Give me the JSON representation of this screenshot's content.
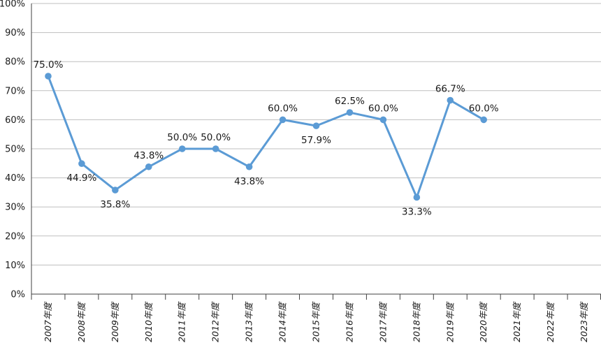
{
  "chart_data": {
    "type": "line",
    "title": "",
    "xlabel": "",
    "ylabel": "",
    "categories": [
      "2007年度",
      "2008年度",
      "2009年度",
      "2010年度",
      "2011年度",
      "2012年度",
      "2013年度",
      "2014年度",
      "2015年度",
      "2016年度",
      "2017年度",
      "2018年度",
      "2019年度",
      "2020年度",
      "2021年度",
      "2022年度",
      "2023年度"
    ],
    "series": [
      {
        "color": "#5b9bd5",
        "values": [
          75.0,
          44.9,
          35.8,
          43.8,
          50.0,
          50.0,
          43.8,
          60.0,
          57.9,
          62.5,
          60.0,
          33.3,
          66.7,
          60.0,
          null,
          null,
          null
        ],
        "labels": [
          "75.0%",
          "44.9%",
          "35.8%",
          "43.8%",
          "50.0%",
          "50.0%",
          "43.8%",
          "60.0%",
          "57.9%",
          "62.5%",
          "60.0%",
          "33.3%",
          "66.7%",
          "60.0%",
          null,
          null,
          null
        ],
        "label_position": [
          "above",
          "below",
          "below",
          "above",
          "above",
          "above",
          "below",
          "above",
          "below",
          "above",
          "above",
          "below",
          "above",
          "above",
          null,
          null,
          null
        ]
      }
    ],
    "ylim": [
      0,
      100
    ],
    "yticks": [
      "0%",
      "10%",
      "20%",
      "30%",
      "40%",
      "50%",
      "60%",
      "70%",
      "80%",
      "90%",
      "100%"
    ],
    "grid": true,
    "legend": "none"
  }
}
